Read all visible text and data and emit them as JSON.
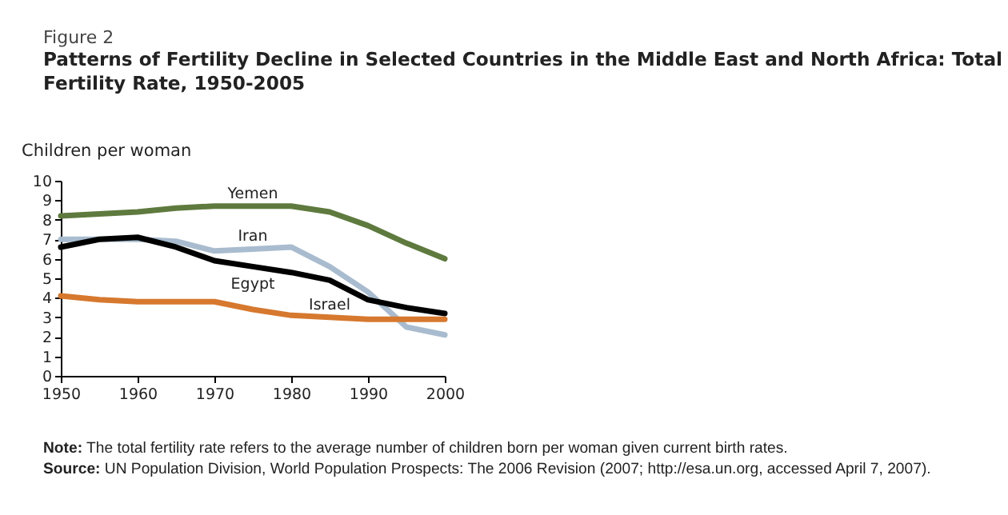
{
  "chart_data": {
    "type": "line",
    "subtitle": "Figure 2",
    "title": "Patterns of Fertility Decline in Selected Countries in the Middle East and North Africa: Total Fertility Rate, 1950-2005",
    "ylabel": "Children per woman",
    "x": [
      1950,
      1955,
      1960,
      1965,
      1970,
      1975,
      1980,
      1985,
      1990,
      1995,
      2000
    ],
    "series": [
      {
        "name": "Yemen",
        "color": "#5e7a3e",
        "values": [
          8.2,
          8.3,
          8.4,
          8.6,
          8.7,
          8.7,
          8.7,
          8.4,
          7.7,
          6.8,
          6.0
        ]
      },
      {
        "name": "Iran",
        "color": "#a9bccf",
        "values": [
          7.0,
          7.0,
          7.0,
          6.9,
          6.4,
          6.5,
          6.6,
          5.6,
          4.3,
          2.5,
          2.1
        ]
      },
      {
        "name": "Egypt",
        "color": "#000000",
        "values": [
          6.6,
          7.0,
          7.1,
          6.6,
          5.9,
          5.6,
          5.3,
          4.9,
          3.9,
          3.5,
          3.2
        ]
      },
      {
        "name": "Israel",
        "color": "#d6782e",
        "values": [
          4.1,
          3.9,
          3.8,
          3.8,
          3.8,
          3.4,
          3.1,
          3.0,
          2.9,
          2.9,
          2.9
        ]
      }
    ],
    "xlim": [
      1950,
      2000
    ],
    "xticks": [
      1950,
      1960,
      1970,
      1980,
      1990,
      2000
    ],
    "ylim": [
      0,
      10
    ],
    "yticks": [
      0,
      1,
      2,
      3,
      4,
      5,
      6,
      7,
      8,
      9,
      10
    ],
    "grid": false,
    "legend": false,
    "line_style": "solid",
    "marker": "none",
    "annotations": [
      "Note: The total fertility rate refers to the average number of children born per woman given current birth rates.",
      "Source: UN Population Division, World Population Prospects: The 2006 Revision (2007; http://esa.un.org, accessed April 7, 2007)."
    ]
  }
}
